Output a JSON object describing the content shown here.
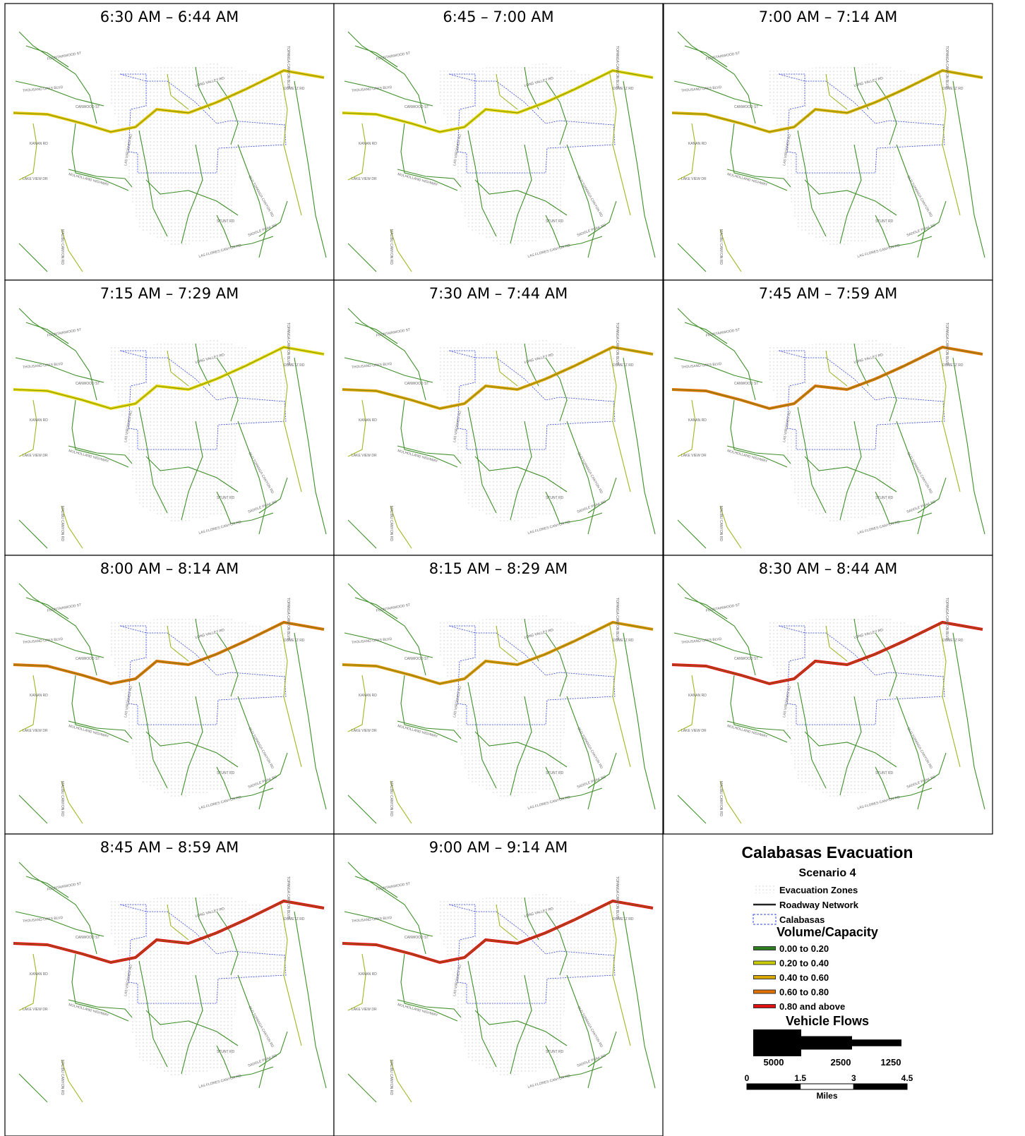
{
  "panels": [
    {
      "title": "6:30 AM – 6:44 AM",
      "freeway_color": "#e8c400"
    },
    {
      "title": "6:45 – 7:00 AM",
      "freeway_color": "#e6d200"
    },
    {
      "title": "7:00 AM – 7:14 AM",
      "freeway_color": "#e0b000"
    },
    {
      "title": "7:15 AM – 7:29 AM",
      "freeway_color": "#e8d400"
    },
    {
      "title": "7:30 AM – 7:44 AM",
      "freeway_color": "#e0a000"
    },
    {
      "title": "7:45 AM – 7:59 AM",
      "freeway_color": "#e07000"
    },
    {
      "title": "8:00 AM – 8:14 AM",
      "freeway_color": "#e07000"
    },
    {
      "title": "8:15 AM – 8:29 AM",
      "freeway_color": "#e09000"
    },
    {
      "title": "8:30 AM – 8:44 AM",
      "freeway_color": "#e01010"
    },
    {
      "title": "8:45 AM – 8:59 AM",
      "freeway_color": "#e01010"
    },
    {
      "title": "9:00 AM – 9:14 AM",
      "freeway_color": "#e01010"
    }
  ],
  "road_labels": [
    "FOUNTAINWOOD ST",
    "THOUSAND OAKS BLVD",
    "CANWOOD ST",
    "KANAN RD",
    "MULHOLLAND HIGHWAY",
    "LAS VIRGENES RD",
    "LONG VALLEY RD",
    "DUMETZ RD",
    "TOPANGA CANYON BLVD",
    "OLD TOPANGA CANYON RD",
    "MALIBU CANYON RD",
    "STUNT RD",
    "SADDLE PEAK RD",
    "LAS FLORES CANYON RD",
    "LAKE VIEW DR"
  ],
  "legend": {
    "title": "Calabasas Evacuation",
    "subtitle": "Scenario 4",
    "layers": [
      {
        "label": "Evacuation Zones"
      },
      {
        "label": "Roadway Network"
      },
      {
        "label": "Calabasas"
      }
    ],
    "vc_title": "Volume/Capacity",
    "vc_classes": [
      {
        "label": "0.00 to 0.20",
        "color": "#2e7d1e"
      },
      {
        "label": "0.20 to 0.40",
        "color": "#c9cc00"
      },
      {
        "label": "0.40 to 0.60",
        "color": "#d6a800"
      },
      {
        "label": "0.60 to 0.80",
        "color": "#e07000"
      },
      {
        "label": "0.80 and above",
        "color": "#e01010"
      }
    ],
    "flows_title": "Vehicle Flows",
    "flows": [
      5000,
      2500,
      1250
    ],
    "scale_ticks": [
      0,
      1.5,
      3,
      4.5
    ],
    "scale_unit": "Miles"
  }
}
